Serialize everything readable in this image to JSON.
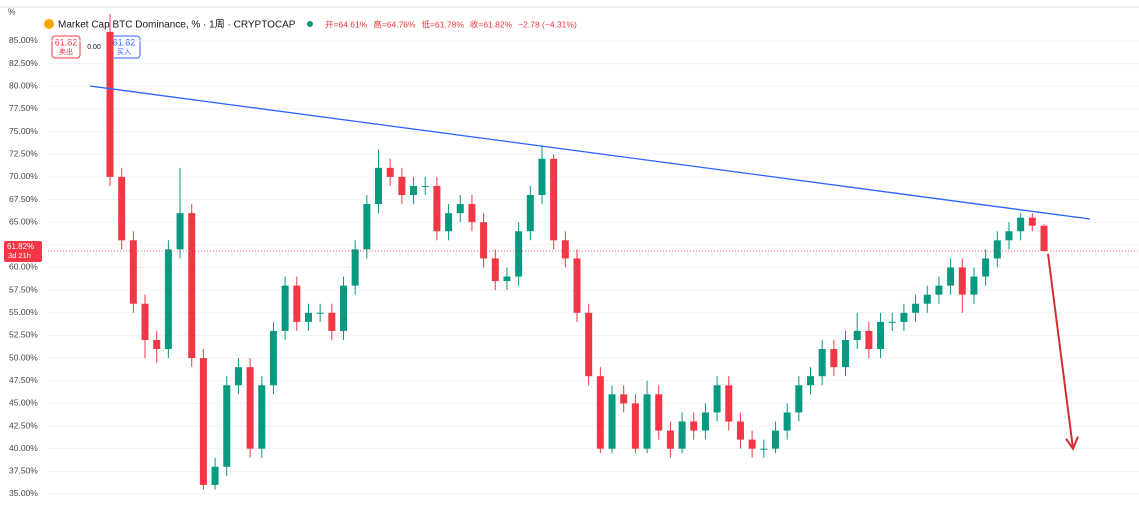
{
  "chart_data": {
    "type": "candlestick",
    "title": "Market Cap BTC Dominance, % · 1周 · CRYPTOCAP",
    "ohlc_labels": [
      "开=64.61%",
      "高=64.76%",
      "低=61.78%",
      "收=61.82%",
      "−2.78 (−4.31%)"
    ],
    "sell_button": {
      "price": "61.82",
      "label": "卖出"
    },
    "spread": "0.00",
    "buy_button": {
      "price": "61.82",
      "label": "买入"
    },
    "y_unit": "%",
    "ylim": [
      32.68,
      87.98
    ],
    "yticks": [
      {
        "value": 85,
        "label": "85.00%"
      },
      {
        "value": 82.5,
        "label": "82.50%"
      },
      {
        "value": 80,
        "label": "80.00%"
      },
      {
        "value": 77.5,
        "label": "77.50%"
      },
      {
        "value": 75,
        "label": "75.00%"
      },
      {
        "value": 72.5,
        "label": "72.50%"
      },
      {
        "value": 70,
        "label": "70.00%"
      },
      {
        "value": 67.5,
        "label": "67.50%"
      },
      {
        "value": 65,
        "label": "65.00%"
      },
      {
        "value": 62.5,
        "label": "62.50%"
      },
      {
        "value": 60,
        "label": "60.00%"
      },
      {
        "value": 57.5,
        "label": "57.50%"
      },
      {
        "value": 55,
        "label": "55.00%"
      },
      {
        "value": 52.5,
        "label": "52.50%"
      },
      {
        "value": 50,
        "label": "50.00%"
      },
      {
        "value": 47.5,
        "label": "47.50%"
      },
      {
        "value": 45,
        "label": "45.00%"
      },
      {
        "value": 42.5,
        "label": "42.50%"
      },
      {
        "value": 40,
        "label": "40.00%"
      },
      {
        "value": 37.5,
        "label": "37.50%"
      },
      {
        "value": 35,
        "label": "35.00%"
      }
    ],
    "grid": true,
    "up_color": "#089981",
    "down_color": "#f23645",
    "open": [
      86,
      70,
      63,
      56,
      52,
      51,
      62,
      66,
      50,
      36,
      38,
      47,
      49,
      40,
      47,
      53,
      58,
      54,
      55,
      55,
      53,
      58,
      62,
      67,
      71,
      70,
      68,
      69,
      69,
      64,
      66,
      67,
      65,
      61,
      58.5,
      59,
      64,
      68,
      72,
      63,
      61,
      55,
      48,
      40,
      46,
      45,
      40,
      46,
      42,
      40,
      43,
      42,
      44,
      47,
      43,
      41,
      40,
      40,
      42,
      44,
      47,
      48,
      51,
      49,
      52,
      53,
      51,
      54,
      54,
      55,
      56,
      57,
      58,
      60,
      57,
      59,
      61,
      63,
      64,
      65.5,
      64.61
    ],
    "high": [
      88,
      71,
      64,
      57,
      53,
      63,
      71,
      67,
      51,
      39,
      48,
      50,
      50,
      48,
      54,
      59,
      59,
      56,
      56,
      56,
      59,
      63,
      68,
      73,
      72,
      71,
      70,
      70,
      70,
      67,
      68,
      68,
      66,
      62,
      60,
      65,
      69,
      73.5,
      72.5,
      64,
      62,
      56,
      49,
      47,
      47,
      46,
      47.5,
      47,
      43,
      44,
      44,
      45,
      48,
      48,
      44,
      42,
      41,
      43,
      45,
      48,
      49,
      52,
      52,
      53,
      55,
      54,
      55,
      55,
      56,
      57,
      58,
      59,
      61,
      61,
      60,
      62,
      64,
      65,
      66,
      66,
      64.76
    ],
    "low": [
      69,
      62,
      55,
      50,
      49.5,
      50,
      61,
      49,
      35.5,
      35.5,
      37,
      46,
      39,
      39,
      46,
      52,
      53,
      53,
      54,
      52,
      52,
      57,
      61,
      66,
      69,
      67,
      67,
      68,
      63,
      63,
      65,
      64,
      60,
      57.5,
      57.5,
      58,
      63,
      67,
      62,
      60,
      54,
      47,
      39.5,
      39.5,
      44,
      39.5,
      39.5,
      41,
      39,
      39.5,
      41,
      41,
      43,
      42,
      40,
      39,
      39,
      39.5,
      41,
      43,
      46,
      47,
      48,
      48,
      51,
      50,
      50,
      53,
      53,
      54,
      55,
      56,
      57,
      55,
      56,
      58,
      60,
      62,
      63,
      64,
      61.78
    ],
    "close": [
      70,
      63,
      56,
      52,
      51,
      62,
      66,
      50,
      36,
      38,
      47,
      49,
      40,
      47,
      53,
      58,
      54,
      55,
      55,
      53,
      58,
      62,
      67,
      71,
      70,
      68,
      69,
      69,
      64,
      66,
      67,
      65,
      61,
      58.5,
      59,
      64,
      68,
      72,
      63,
      61,
      55,
      48,
      40,
      46,
      45,
      40,
      46,
      42,
      40,
      43,
      42,
      44,
      47,
      43,
      41,
      40,
      40,
      42,
      44,
      47,
      48,
      51,
      49,
      52,
      53,
      51,
      54,
      54,
      55,
      56,
      57,
      58,
      60,
      57,
      59,
      61,
      63,
      64,
      65.5,
      64.61,
      61.82
    ],
    "last_price": {
      "value": 61.82,
      "label": "61.82%"
    },
    "countdown": "3d 21h",
    "trendline": {
      "color": "#2962ff",
      "values": [
        80.03,
        65.35
      ]
    },
    "arrow": {
      "color": "#d32f2f",
      "values": [
        61.5,
        40
      ]
    }
  }
}
